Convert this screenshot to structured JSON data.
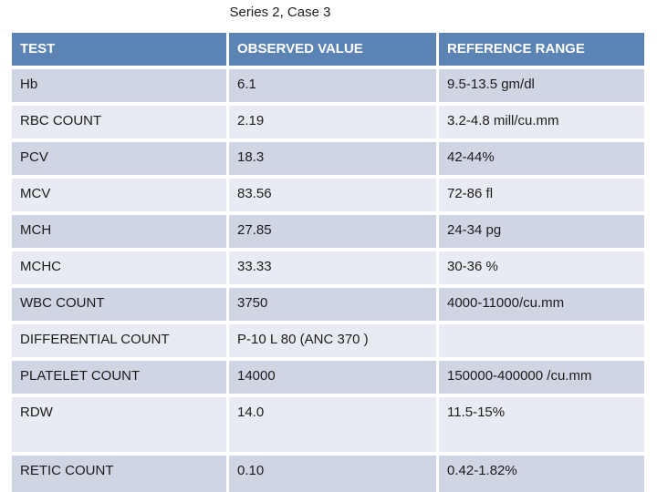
{
  "title": "Series 2, Case 3",
  "colors": {
    "header_bg": "#5b84b5",
    "row_dark": "#cfd5e3",
    "row_light": "#e9ebf2",
    "header_text": "#ffffff",
    "body_text": "#1c1c1c",
    "separator": "#ffffff",
    "page_bg": "#ffffff"
  },
  "table": {
    "columns": [
      "TEST",
      "OBSERVED VALUE",
      "REFERENCE RANGE"
    ],
    "rows": [
      {
        "test": "Hb",
        "observed": "6.1",
        "reference": "9.5-13.5 gm/dl"
      },
      {
        "test": "RBC COUNT",
        "observed": "2.19",
        "reference": "3.2-4.8 mill/cu.mm"
      },
      {
        "test": "PCV",
        "observed": "18.3",
        "reference": "42-44%"
      },
      {
        "test": "MCV",
        "observed": "83.56",
        "reference": "72-86 fl"
      },
      {
        "test": "MCH",
        "observed": "27.85",
        "reference": "24-34 pg"
      },
      {
        "test": "MCHC",
        "observed": "33.33",
        "reference": "30-36 %"
      },
      {
        "test": "WBC COUNT",
        "observed": "3750",
        "reference": "4000-11000/cu.mm"
      },
      {
        "test": "DIFFERENTIAL COUNT",
        "observed": "P-10 L 80 (ANC 370 )",
        "reference": ""
      },
      {
        "test": "PLATELET COUNT",
        "observed": "14000",
        "reference": "150000-400000 /cu.mm"
      },
      {
        "test": "RDW",
        "observed": "14.0",
        "reference": "11.5-15%"
      },
      {
        "test": "RETIC COUNT",
        "observed": "0.10",
        "reference": "0.42-1.82%"
      }
    ]
  }
}
